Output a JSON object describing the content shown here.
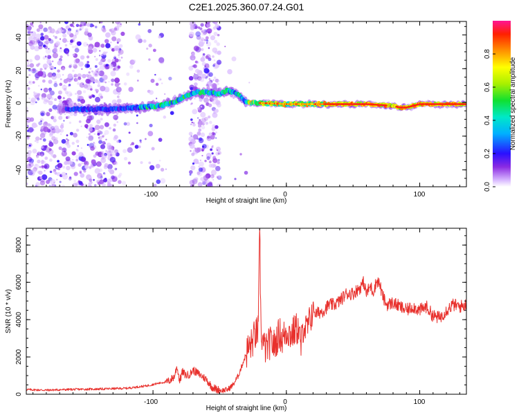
{
  "title": "C2E1.2025.360.07.24.G01",
  "chart_data": [
    {
      "type": "heatmap",
      "xlabel": "Height of straight line (km)",
      "ylabel": "Frequency (Hz)",
      "xlim": [
        -195,
        135
      ],
      "ylim": [
        -50,
        48
      ],
      "x_ticks": [
        -100,
        0,
        100
      ],
      "x_tick_labels": [
        "-100",
        "0",
        "100"
      ],
      "y_ticks": [
        -40,
        -20,
        0,
        20,
        40
      ],
      "y_tick_labels": [
        "-40",
        "-20",
        "0",
        "20",
        "40"
      ],
      "colorbar": {
        "label": "Normalized spectral amplitude",
        "range": [
          0,
          1
        ],
        "ticks": [
          0.0,
          0.2,
          0.4,
          0.6,
          0.8
        ],
        "tick_labels": [
          "0.0",
          "0.2",
          "0.4",
          "0.6",
          "0.8"
        ]
      },
      "ridge_frequency": {
        "x": [
          -155,
          -130,
          -110,
          -95,
          -85,
          -75,
          -68,
          -60,
          -50,
          -45,
          -40,
          -35,
          -30,
          0,
          30,
          60,
          80,
          85,
          90,
          95,
          100,
          135
        ],
        "freq": [
          -4,
          -4,
          -3,
          -2,
          0,
          4,
          6,
          6,
          5,
          7,
          6,
          4,
          0,
          -1,
          -1,
          -1,
          -2,
          -3,
          -3,
          -2,
          -1,
          -1
        ]
      }
    },
    {
      "type": "line",
      "xlabel": "Height of straight line (km)",
      "ylabel": "SNR (10 * v/v)",
      "xlim": [
        -195,
        135
      ],
      "ylim": [
        0,
        8900
      ],
      "x_ticks": [
        -100,
        0,
        100
      ],
      "x_tick_labels": [
        "-100",
        "0",
        "100"
      ],
      "y_ticks": [
        0,
        2000,
        4000,
        6000,
        8000
      ],
      "y_tick_labels": [
        "0",
        "2000",
        "4000",
        "6000",
        "8000"
      ],
      "color": "#e8302c",
      "series": [
        {
          "name": "SNR",
          "x": [
            -195,
            -180,
            -160,
            -140,
            -120,
            -105,
            -95,
            -88,
            -84,
            -82,
            -80,
            -78,
            -75,
            -72,
            -70,
            -67,
            -64,
            -60,
            -56,
            -52,
            -48,
            -44,
            -40,
            -36,
            -32,
            -29,
            -26,
            -24,
            -22,
            -21,
            -20,
            -19,
            -18,
            -17,
            -15,
            -13,
            -11,
            -9,
            -7,
            -5,
            -3,
            -1,
            1,
            3,
            5,
            7,
            9,
            11,
            13,
            15,
            18,
            20,
            22,
            25,
            28,
            32,
            36,
            40,
            45,
            50,
            55,
            58,
            60,
            63,
            65,
            68,
            70,
            72,
            75,
            80,
            85,
            90,
            95,
            100,
            105,
            110,
            115,
            120,
            125,
            130,
            135
          ],
          "y": [
            250,
            220,
            260,
            280,
            320,
            450,
            600,
            700,
            950,
            1500,
            700,
            1200,
            1000,
            1100,
            1300,
            1150,
            1000,
            800,
            400,
            250,
            200,
            250,
            500,
            1000,
            1800,
            2400,
            2700,
            3100,
            3300,
            3500,
            8900,
            3300,
            3000,
            2600,
            2400,
            2700,
            2800,
            2600,
            3000,
            3300,
            2900,
            3300,
            3400,
            3200,
            3300,
            3500,
            3500,
            2600,
            3800,
            3400,
            4000,
            4700,
            4300,
            4400,
            4500,
            4800,
            4800,
            5000,
            5400,
            5400,
            5700,
            6000,
            5400,
            5800,
            5500,
            6100,
            5900,
            5300,
            4800,
            4900,
            4700,
            4500,
            4700,
            4500,
            4700,
            4200,
            4100,
            4500,
            4800,
            4700,
            4800
          ]
        }
      ]
    }
  ]
}
